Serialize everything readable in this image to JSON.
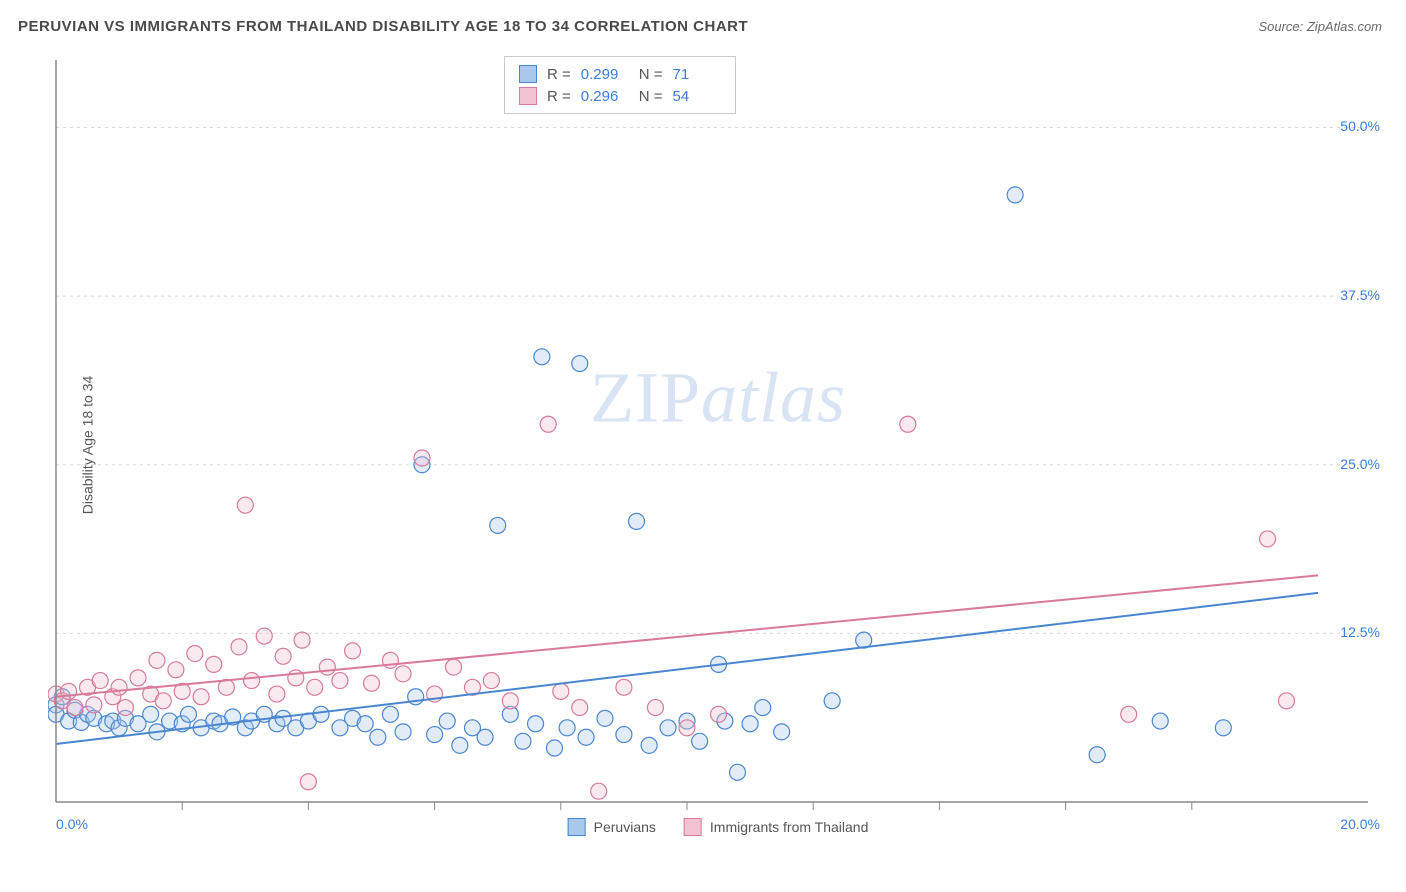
{
  "title": "PERUVIAN VS IMMIGRANTS FROM THAILAND DISABILITY AGE 18 TO 34 CORRELATION CHART",
  "source": "Source: ZipAtlas.com",
  "watermark_zip": "ZIP",
  "watermark_atlas": "atlas",
  "y_axis_label": "Disability Age 18 to 34",
  "chart": {
    "type": "scatter",
    "background_color": "#ffffff",
    "grid_color": "#d8d8d8",
    "axis_line_color": "#888888",
    "xlim": [
      0,
      20
    ],
    "ylim": [
      0,
      55
    ],
    "x_ticks": [
      0,
      20
    ],
    "x_tick_labels": [
      "0.0%",
      "20.0%"
    ],
    "x_minor_ticks": [
      2,
      4,
      6,
      8,
      10,
      12,
      14,
      16,
      18
    ],
    "y_ticks": [
      12.5,
      25.0,
      37.5,
      50.0
    ],
    "y_tick_labels": [
      "12.5%",
      "25.0%",
      "37.5%",
      "50.0%"
    ],
    "tick_label_color": "#3b7dd8",
    "tick_label_fontsize": 14,
    "marker_radius": 8,
    "marker_stroke_width": 1.2,
    "marker_fill_opacity": 0.35,
    "trend_line_width": 2,
    "series": [
      {
        "name": "Peruvians",
        "color_stroke": "#4a86d0",
        "color_fill": "#a9c8ec",
        "r": 0.299,
        "n": 71,
        "trend": {
          "y_at_x0": 4.3,
          "y_at_x20": 15.5
        },
        "points": [
          {
            "x": 0.0,
            "y": 7.2
          },
          {
            "x": 0.0,
            "y": 6.5
          },
          {
            "x": 0.1,
            "y": 7.8
          },
          {
            "x": 0.2,
            "y": 6.0
          },
          {
            "x": 0.3,
            "y": 6.8
          },
          {
            "x": 0.4,
            "y": 5.9
          },
          {
            "x": 0.5,
            "y": 6.5
          },
          {
            "x": 0.6,
            "y": 6.2
          },
          {
            "x": 0.8,
            "y": 5.8
          },
          {
            "x": 0.9,
            "y": 6.0
          },
          {
            "x": 1.0,
            "y": 5.5
          },
          {
            "x": 1.1,
            "y": 6.2
          },
          {
            "x": 1.3,
            "y": 5.8
          },
          {
            "x": 1.5,
            "y": 6.5
          },
          {
            "x": 1.6,
            "y": 5.2
          },
          {
            "x": 1.8,
            "y": 6.0
          },
          {
            "x": 2.0,
            "y": 5.8
          },
          {
            "x": 2.1,
            "y": 6.5
          },
          {
            "x": 2.3,
            "y": 5.5
          },
          {
            "x": 2.5,
            "y": 6.0
          },
          {
            "x": 2.6,
            "y": 5.8
          },
          {
            "x": 2.8,
            "y": 6.3
          },
          {
            "x": 3.0,
            "y": 5.5
          },
          {
            "x": 3.1,
            "y": 6.0
          },
          {
            "x": 3.3,
            "y": 6.5
          },
          {
            "x": 3.5,
            "y": 5.8
          },
          {
            "x": 3.6,
            "y": 6.2
          },
          {
            "x": 3.8,
            "y": 5.5
          },
          {
            "x": 4.0,
            "y": 6.0
          },
          {
            "x": 4.2,
            "y": 6.5
          },
          {
            "x": 4.5,
            "y": 5.5
          },
          {
            "x": 4.7,
            "y": 6.2
          },
          {
            "x": 4.9,
            "y": 5.8
          },
          {
            "x": 5.1,
            "y": 4.8
          },
          {
            "x": 5.3,
            "y": 6.5
          },
          {
            "x": 5.5,
            "y": 5.2
          },
          {
            "x": 5.7,
            "y": 7.8
          },
          {
            "x": 5.8,
            "y": 25.0
          },
          {
            "x": 6.0,
            "y": 5.0
          },
          {
            "x": 6.2,
            "y": 6.0
          },
          {
            "x": 6.4,
            "y": 4.2
          },
          {
            "x": 6.6,
            "y": 5.5
          },
          {
            "x": 6.8,
            "y": 4.8
          },
          {
            "x": 7.0,
            "y": 20.5
          },
          {
            "x": 7.2,
            "y": 6.5
          },
          {
            "x": 7.4,
            "y": 4.5
          },
          {
            "x": 7.6,
            "y": 5.8
          },
          {
            "x": 7.7,
            "y": 33.0
          },
          {
            "x": 7.9,
            "y": 4.0
          },
          {
            "x": 8.1,
            "y": 5.5
          },
          {
            "x": 8.3,
            "y": 32.5
          },
          {
            "x": 8.4,
            "y": 4.8
          },
          {
            "x": 8.7,
            "y": 6.2
          },
          {
            "x": 9.0,
            "y": 5.0
          },
          {
            "x": 9.2,
            "y": 20.8
          },
          {
            "x": 9.4,
            "y": 4.2
          },
          {
            "x": 9.7,
            "y": 5.5
          },
          {
            "x": 10.0,
            "y": 6.0
          },
          {
            "x": 10.2,
            "y": 4.5
          },
          {
            "x": 10.5,
            "y": 10.2
          },
          {
            "x": 10.6,
            "y": 6.0
          },
          {
            "x": 10.8,
            "y": 2.2
          },
          {
            "x": 11.0,
            "y": 5.8
          },
          {
            "x": 11.2,
            "y": 7.0
          },
          {
            "x": 11.5,
            "y": 5.2
          },
          {
            "x": 12.3,
            "y": 7.5
          },
          {
            "x": 12.8,
            "y": 12.0
          },
          {
            "x": 15.2,
            "y": 45.0
          },
          {
            "x": 16.5,
            "y": 3.5
          },
          {
            "x": 17.5,
            "y": 6.0
          },
          {
            "x": 18.5,
            "y": 5.5
          }
        ]
      },
      {
        "name": "Immigrants from Thailand",
        "color_stroke": "#d87a9a",
        "color_fill": "#f2c2d2",
        "r": 0.296,
        "n": 54,
        "trend": {
          "y_at_x0": 7.8,
          "y_at_x20": 16.8
        },
        "points": [
          {
            "x": 0.0,
            "y": 8.0
          },
          {
            "x": 0.1,
            "y": 7.5
          },
          {
            "x": 0.2,
            "y": 8.2
          },
          {
            "x": 0.3,
            "y": 7.0
          },
          {
            "x": 0.5,
            "y": 8.5
          },
          {
            "x": 0.6,
            "y": 7.2
          },
          {
            "x": 0.7,
            "y": 9.0
          },
          {
            "x": 0.9,
            "y": 7.8
          },
          {
            "x": 1.0,
            "y": 8.5
          },
          {
            "x": 1.1,
            "y": 7.0
          },
          {
            "x": 1.3,
            "y": 9.2
          },
          {
            "x": 1.5,
            "y": 8.0
          },
          {
            "x": 1.6,
            "y": 10.5
          },
          {
            "x": 1.7,
            "y": 7.5
          },
          {
            "x": 1.9,
            "y": 9.8
          },
          {
            "x": 2.0,
            "y": 8.2
          },
          {
            "x": 2.2,
            "y": 11.0
          },
          {
            "x": 2.3,
            "y": 7.8
          },
          {
            "x": 2.5,
            "y": 10.2
          },
          {
            "x": 2.7,
            "y": 8.5
          },
          {
            "x": 2.9,
            "y": 11.5
          },
          {
            "x": 3.0,
            "y": 22.0
          },
          {
            "x": 3.1,
            "y": 9.0
          },
          {
            "x": 3.3,
            "y": 12.3
          },
          {
            "x": 3.5,
            "y": 8.0
          },
          {
            "x": 3.6,
            "y": 10.8
          },
          {
            "x": 3.8,
            "y": 9.2
          },
          {
            "x": 3.9,
            "y": 12.0
          },
          {
            "x": 4.0,
            "y": 1.5
          },
          {
            "x": 4.1,
            "y": 8.5
          },
          {
            "x": 4.3,
            "y": 10.0
          },
          {
            "x": 4.5,
            "y": 9.0
          },
          {
            "x": 4.7,
            "y": 11.2
          },
          {
            "x": 5.0,
            "y": 8.8
          },
          {
            "x": 5.3,
            "y": 10.5
          },
          {
            "x": 5.5,
            "y": 9.5
          },
          {
            "x": 5.8,
            "y": 25.5
          },
          {
            "x": 6.0,
            "y": 8.0
          },
          {
            "x": 6.3,
            "y": 10.0
          },
          {
            "x": 6.6,
            "y": 8.5
          },
          {
            "x": 6.9,
            "y": 9.0
          },
          {
            "x": 7.2,
            "y": 7.5
          },
          {
            "x": 7.8,
            "y": 28.0
          },
          {
            "x": 8.0,
            "y": 8.2
          },
          {
            "x": 8.3,
            "y": 7.0
          },
          {
            "x": 8.6,
            "y": 0.8
          },
          {
            "x": 9.0,
            "y": 8.5
          },
          {
            "x": 9.5,
            "y": 7.0
          },
          {
            "x": 10.0,
            "y": 5.5
          },
          {
            "x": 10.5,
            "y": 6.5
          },
          {
            "x": 13.5,
            "y": 28.0
          },
          {
            "x": 17.0,
            "y": 6.5
          },
          {
            "x": 19.2,
            "y": 19.5
          },
          {
            "x": 19.5,
            "y": 7.5
          }
        ]
      }
    ]
  },
  "stats_box": {
    "r_label": "R =",
    "n_label": "N ="
  },
  "legend": {
    "series1": "Peruvians",
    "series2": "Immigrants from Thailand"
  }
}
